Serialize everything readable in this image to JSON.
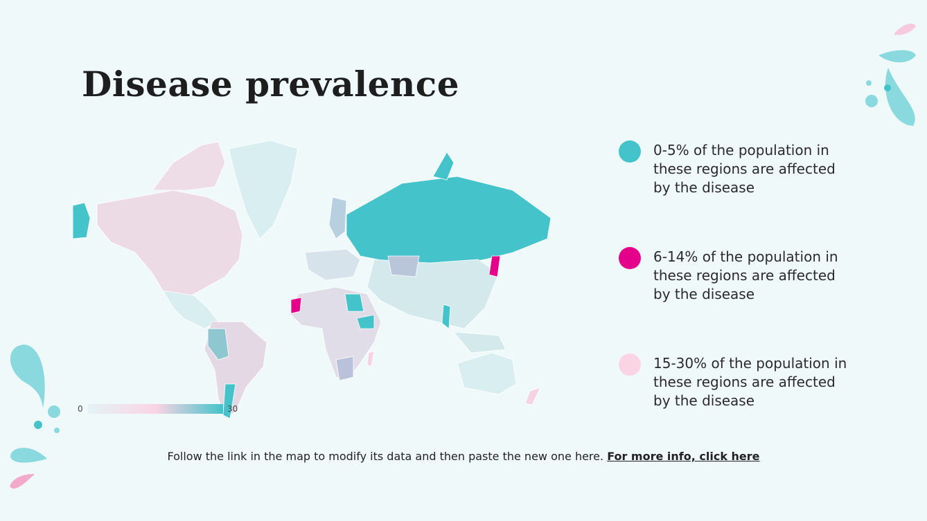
{
  "header": {
    "title": "Disease prevalence"
  },
  "legend": [
    {
      "text": "0-5% of the population in these regions are affected by the disease",
      "color": "#44c3cb"
    },
    {
      "text": "6-14% of the population in these regions are affected by the disease",
      "color": "#e5008b"
    },
    {
      "text": "15-30% of the population in these regions are affected by the disease",
      "color": "#fbd4e4"
    }
  ],
  "map": {
    "scale": {
      "min": 0,
      "max": 30
    }
  },
  "footer": {
    "text": "Follow the link in the map to modify its data and then paste the new one here.",
    "link": "For more info, click here"
  }
}
